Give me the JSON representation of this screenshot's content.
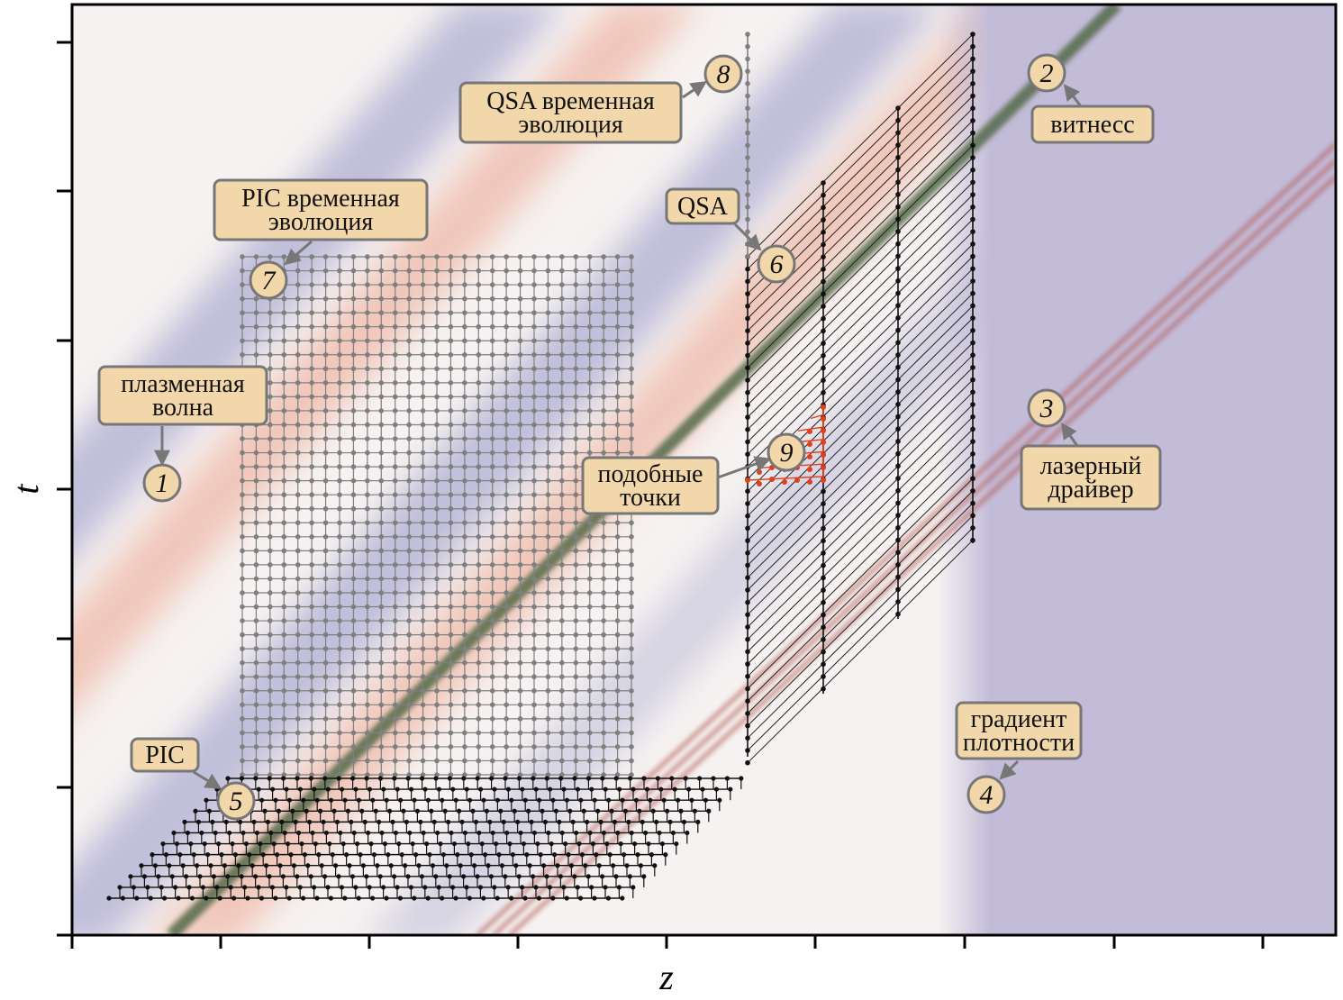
{
  "axes": {
    "x_label": "z",
    "y_label": "t"
  },
  "callouts": [
    {
      "id": "wave",
      "lines": [
        "плазменная",
        "волна"
      ],
      "number": "1"
    },
    {
      "id": "witness",
      "lines": [
        "витнесс"
      ],
      "number": "2"
    },
    {
      "id": "laser",
      "lines": [
        "лазерный",
        "драйвер"
      ],
      "number": "3"
    },
    {
      "id": "gradient",
      "lines": [
        "градиент",
        "плотности"
      ],
      "number": "4"
    },
    {
      "id": "pic",
      "lines": [
        "PIC"
      ],
      "number": "5"
    },
    {
      "id": "qsa",
      "lines": [
        "QSA"
      ],
      "number": "6"
    },
    {
      "id": "pic-time",
      "lines": [
        "PIC временная",
        "эволюция"
      ],
      "number": "7"
    },
    {
      "id": "qsa-time",
      "lines": [
        "QSA временная",
        "эволюция"
      ],
      "number": "8"
    },
    {
      "id": "similar",
      "lines": [
        "подобные",
        "точки"
      ],
      "number": "9"
    }
  ],
  "colors": {
    "witness_band": "#556b4a",
    "laser_band": "#b0554f",
    "wave_red": "#f0c0b0",
    "wave_blue": "#b7b6d6",
    "gradient_region": "#c3bcd9",
    "callout_fill": "#f2d7aa",
    "callout_stroke": "#777777",
    "pic_grid_gray": "#7f7f7f",
    "grid_black": "#111111",
    "similar_points": "#e0401c"
  }
}
